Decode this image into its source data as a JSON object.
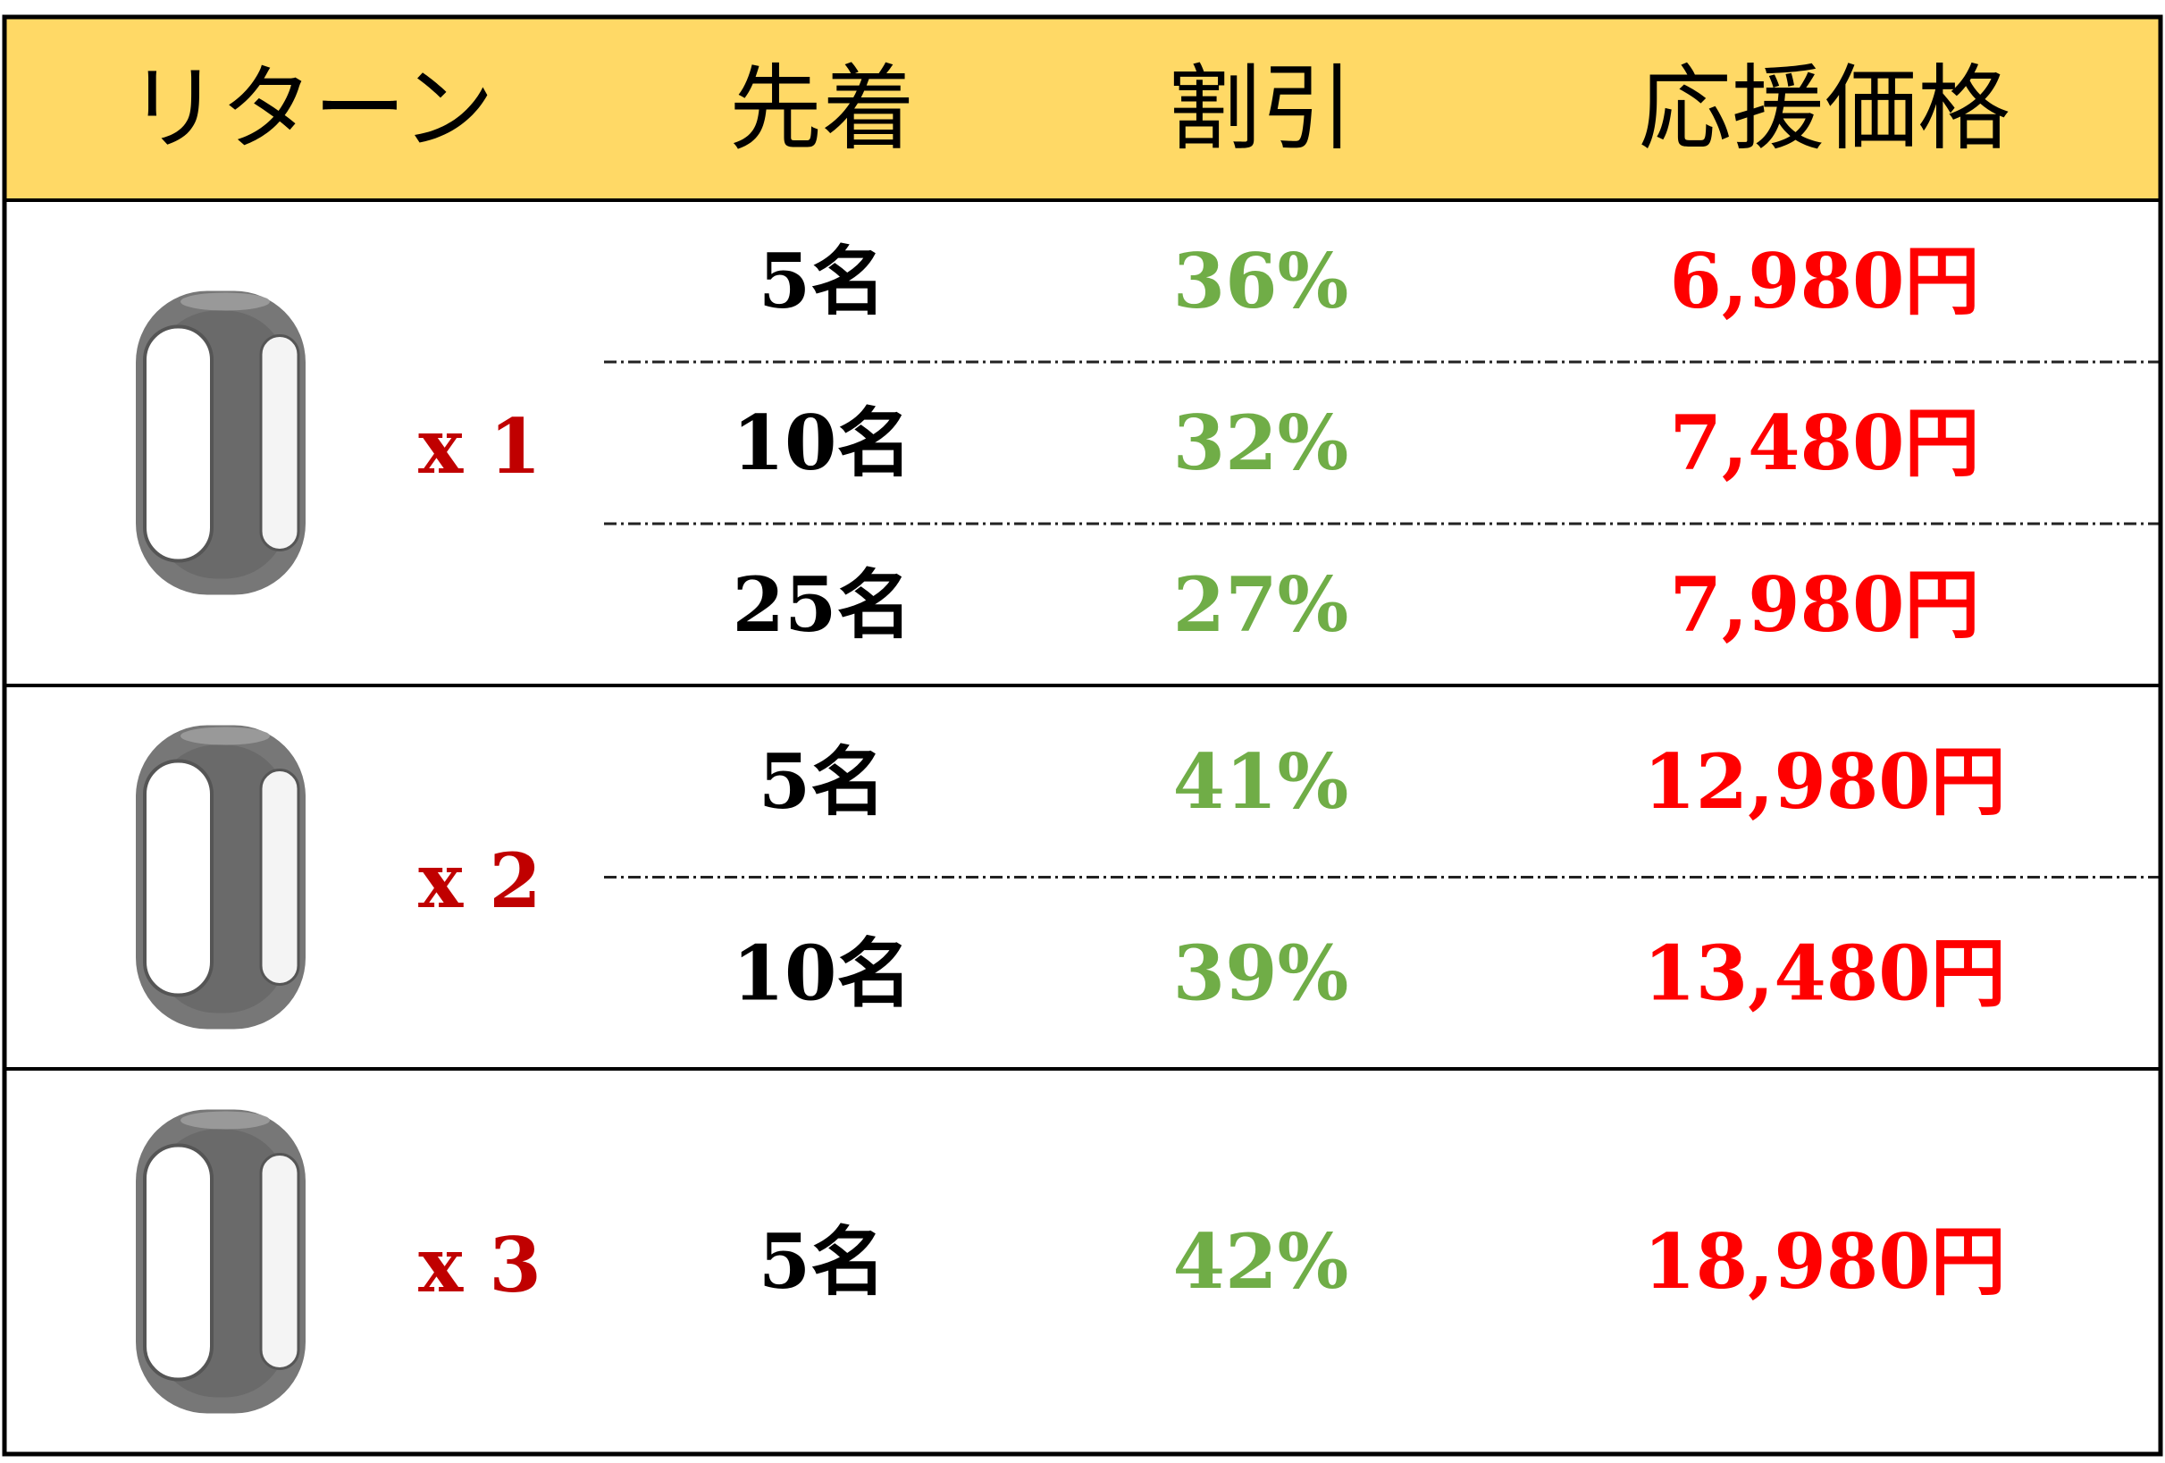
{
  "header": [
    "リターン",
    "先着",
    "割引",
    "応援価格"
  ],
  "groups": [
    {
      "quantity": "x 1",
      "rows": [
        [
          "5名",
          "36%",
          "6,980円"
        ],
        [
          "10名",
          "32%",
          "7,480円"
        ],
        [
          "25名",
          "27%",
          "7,980円"
        ]
      ]
    },
    {
      "quantity": "x 2",
      "rows": [
        [
          "5名",
          "41%",
          "12,980円"
        ],
        [
          "10名",
          "39%",
          "13,480円"
        ]
      ]
    },
    {
      "quantity": "x 3",
      "rows": [
        [
          "5名",
          "42%",
          "18,980円"
        ]
      ]
    }
  ]
}
